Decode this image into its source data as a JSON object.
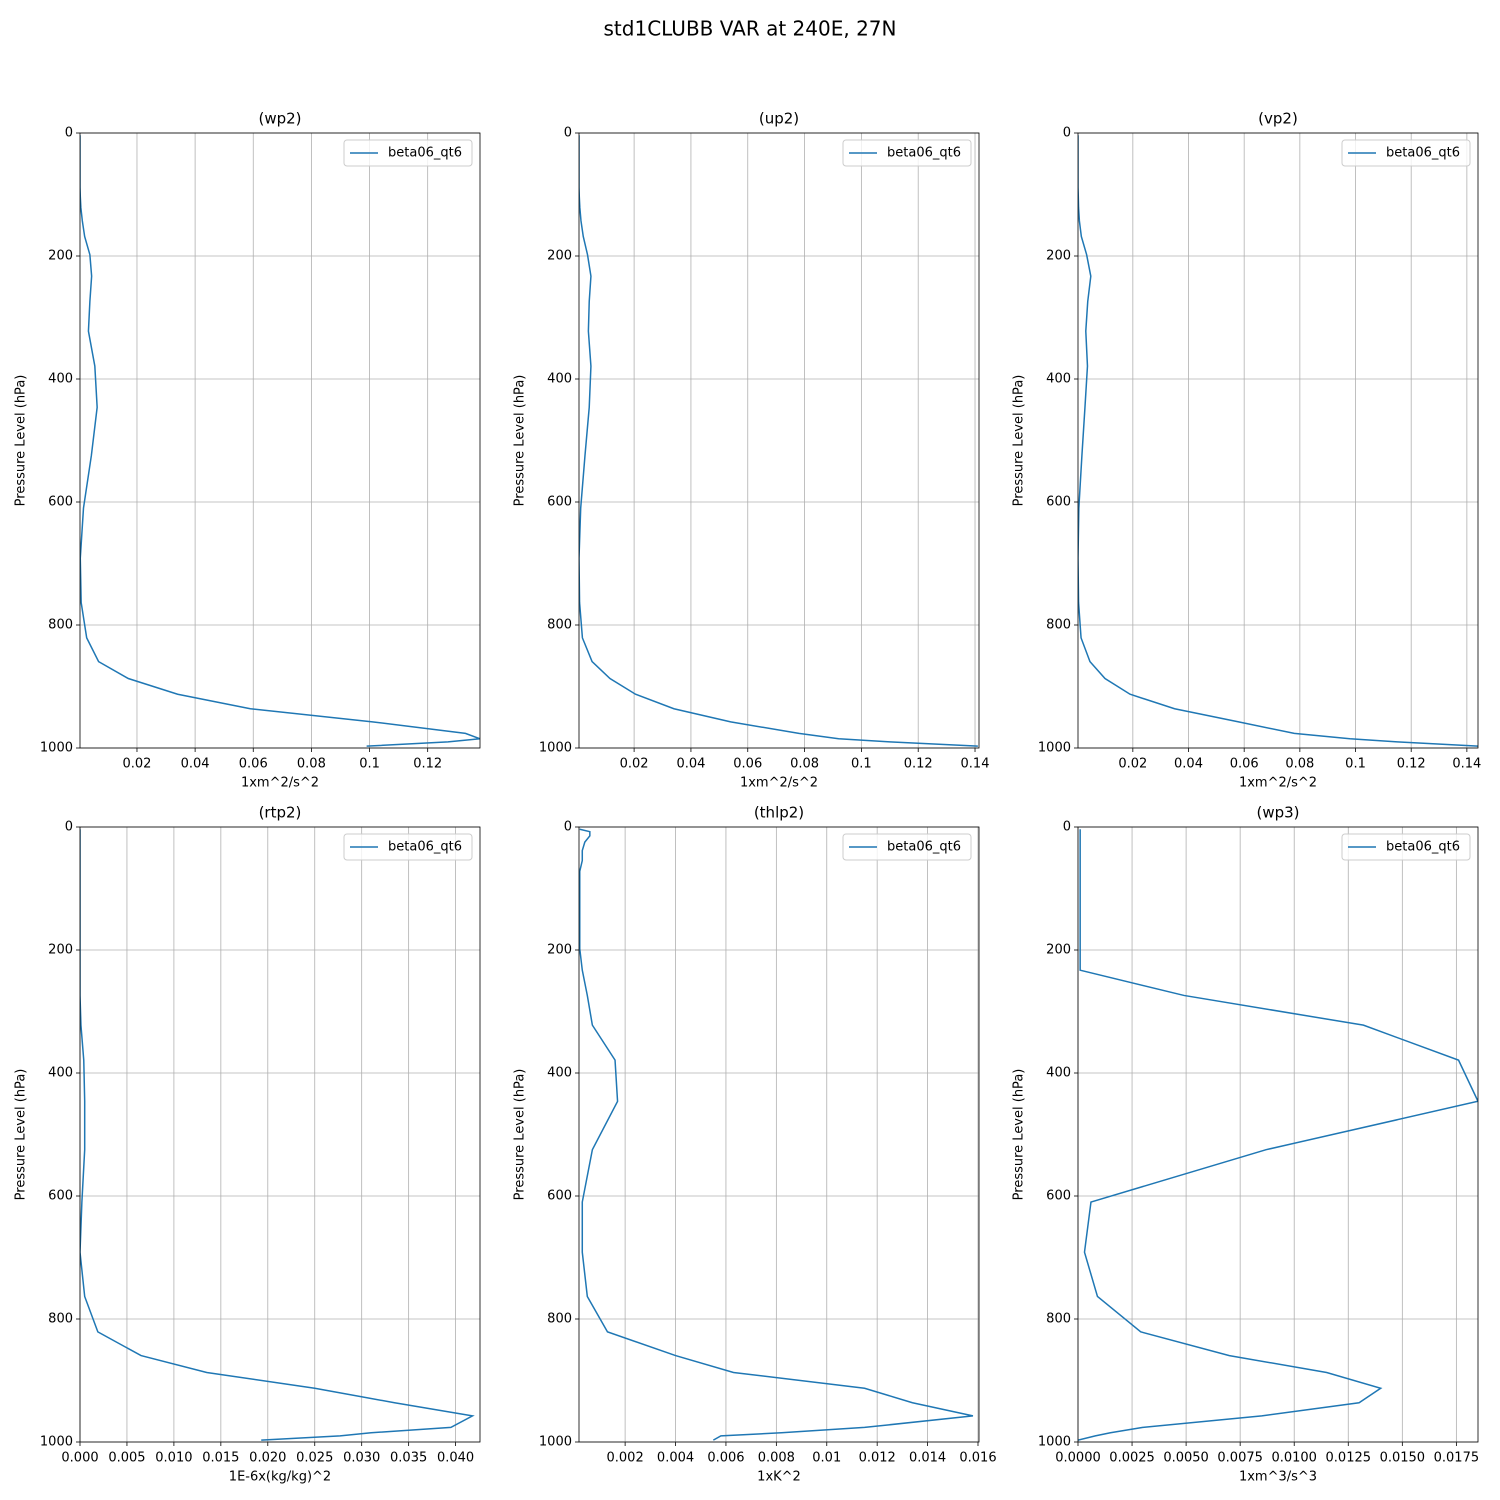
{
  "title": "std1CLUBB VAR at 240E, 27N",
  "chart_data": [
    {
      "type": "line",
      "title": "(wp2)",
      "xlabel": "1xm^2/s^2",
      "ylabel": "Pressure Level (hPa)",
      "y": [
        3.6,
        7.6,
        14.4,
        24.6,
        38.3,
        54.6,
        72,
        87.8,
        103.3,
        121.5,
        143,
        168.2,
        197.9,
        232.8,
        273.9,
        322.2,
        379.1,
        446,
        524.7,
        609.8,
        691.4,
        763.4,
        820.9,
        859.5,
        887,
        912.6,
        936.2,
        957.5,
        976.3,
        985,
        990,
        997
      ],
      "series": [
        {
          "name": "beta06_qt6",
          "color": "#1f77b4",
          "values": [
            0.0004,
            0.0004,
            0.0004,
            0.0004,
            0.0004,
            0.0004,
            0.0004,
            0.0004,
            0.0005,
            0.0007,
            0.0012,
            0.002,
            0.0038,
            0.0044,
            0.0038,
            0.0033,
            0.0055,
            0.0063,
            0.0043,
            0.0016,
            0.0005,
            0.0008,
            0.0027,
            0.0068,
            0.017,
            0.034,
            0.059,
            0.101,
            0.133,
            0.138,
            0.127,
            0.099
          ]
        }
      ],
      "xlim": [
        0.0004,
        0.138
      ],
      "xticks": [
        0.02,
        0.04,
        0.06,
        0.08,
        0.1,
        0.12
      ],
      "ylim": [
        1000,
        0
      ],
      "yticks": [
        0,
        200,
        400,
        600,
        800,
        1000
      ],
      "grid": true,
      "legend": "upper right"
    },
    {
      "type": "line",
      "title": "(up2)",
      "xlabel": "1xm^2/s^2",
      "ylabel": "Pressure Level (hPa)",
      "y": [
        3.6,
        7.6,
        14.4,
        24.6,
        38.3,
        54.6,
        72,
        87.8,
        103.3,
        121.5,
        143,
        168.2,
        197.9,
        232.8,
        273.9,
        322.2,
        379.1,
        446,
        524.7,
        609.8,
        691.4,
        763.4,
        820.9,
        859.5,
        887,
        912.6,
        936.2,
        957.5,
        976.3,
        985,
        990,
        997
      ],
      "series": [
        {
          "name": "beta06_qt6",
          "color": "#1f77b4",
          "values": [
            0.0006,
            0.0006,
            0.0006,
            0.0006,
            0.0006,
            0.0006,
            0.0006,
            0.0006,
            0.0007,
            0.0009,
            0.0013,
            0.0021,
            0.0036,
            0.0048,
            0.0042,
            0.0039,
            0.0048,
            0.0042,
            0.0027,
            0.0012,
            0.0006,
            0.0008,
            0.0018,
            0.0052,
            0.0115,
            0.0205,
            0.034,
            0.054,
            0.078,
            0.092,
            0.11,
            0.141
          ]
        }
      ],
      "xlim": [
        0.0006,
        0.1414
      ],
      "xticks": [
        0.02,
        0.04,
        0.06,
        0.08,
        0.1,
        0.12,
        0.14
      ],
      "ylim": [
        1000,
        0
      ],
      "yticks": [
        0,
        200,
        400,
        600,
        800,
        1000
      ],
      "grid": true,
      "legend": "upper right"
    },
    {
      "type": "line",
      "title": "(vp2)",
      "xlabel": "1xm^2/s^2",
      "ylabel": "Pressure Level (hPa)",
      "y": [
        3.6,
        7.6,
        14.4,
        24.6,
        38.3,
        54.6,
        72,
        87.8,
        103.3,
        121.5,
        143,
        168.2,
        197.9,
        232.8,
        273.9,
        322.2,
        379.1,
        446,
        524.7,
        609.8,
        691.4,
        763.4,
        820.9,
        859.5,
        887,
        912.6,
        936.2,
        957.5,
        976.3,
        985,
        990,
        997
      ],
      "series": [
        {
          "name": "beta06_qt6",
          "color": "#1f77b4",
          "values": [
            0.0003,
            0.0003,
            0.0003,
            0.0003,
            0.0003,
            0.0003,
            0.0003,
            0.0003,
            0.0004,
            0.0005,
            0.0008,
            0.0015,
            0.0034,
            0.0049,
            0.0038,
            0.0031,
            0.0037,
            0.0028,
            0.0017,
            0.0006,
            0.0003,
            0.0005,
            0.0014,
            0.0046,
            0.01,
            0.019,
            0.035,
            0.058,
            0.078,
            0.098,
            0.115,
            0.144
          ]
        }
      ],
      "xlim": [
        0.0003,
        0.144
      ],
      "xticks": [
        0.02,
        0.04,
        0.06,
        0.08,
        0.1,
        0.12,
        0.14
      ],
      "ylim": [
        1000,
        0
      ],
      "yticks": [
        0,
        200,
        400,
        600,
        800,
        1000
      ],
      "grid": true,
      "legend": "upper right"
    },
    {
      "type": "line",
      "title": "(rtp2)",
      "xlabel": "1E-6x(kg/kg)^2",
      "ylabel": "Pressure Level (hPa)",
      "y": [
        3.6,
        7.6,
        14.4,
        24.6,
        38.3,
        54.6,
        72,
        87.8,
        103.3,
        121.5,
        143,
        168.2,
        197.9,
        232.8,
        273.9,
        322.2,
        379.1,
        446,
        524.7,
        609.8,
        691.4,
        763.4,
        820.9,
        859.5,
        887,
        912.6,
        936.2,
        957.5,
        976.3,
        985,
        990,
        997
      ],
      "series": [
        {
          "name": "beta06_qt6",
          "color": "#1f77b4",
          "values": [
            0,
            0,
            0,
            0,
            0,
            0,
            0,
            0,
            0,
            0,
            0,
            0,
            0,
            0,
            0,
            0.0001,
            0.0004,
            0.0005,
            0.0005,
            0.0002,
            0,
            0.0005,
            0.0019,
            0.0065,
            0.0135,
            0.025,
            0.0335,
            0.0418,
            0.0395,
            0.031,
            0.0277,
            0.0193
          ]
        }
      ],
      "xlim": [
        0,
        0.0426
      ],
      "xticks": [
        {
          "value": 0,
          "label": "0.000"
        },
        {
          "value": 0.005,
          "label": "0.005"
        },
        {
          "value": 0.01,
          "label": "0.010"
        },
        {
          "value": 0.015,
          "label": "0.015"
        },
        {
          "value": 0.02,
          "label": "0.020"
        },
        {
          "value": 0.025,
          "label": "0.025"
        },
        {
          "value": 0.03,
          "label": "0.030"
        },
        {
          "value": 0.035,
          "label": "0.035"
        },
        {
          "value": 0.04,
          "label": "0.040"
        }
      ],
      "ylim": [
        1000,
        0
      ],
      "yticks": [
        0,
        200,
        400,
        600,
        800,
        1000
      ],
      "grid": true,
      "legend": "upper right"
    },
    {
      "type": "line",
      "title": "(thlp2)",
      "xlabel": "1xK^2",
      "ylabel": "Pressure Level (hPa)",
      "y": [
        3.6,
        7.6,
        14.4,
        24.6,
        38.3,
        54.6,
        72,
        87.8,
        103.3,
        121.5,
        143,
        168.2,
        197.9,
        232.8,
        273.9,
        322.2,
        379.1,
        446,
        524.7,
        609.8,
        691.4,
        763.4,
        820.9,
        859.5,
        887,
        912.6,
        936.2,
        957.5,
        976.3,
        985,
        990,
        997
      ],
      "series": [
        {
          "name": "beta06_qt6",
          "color": "#1f77b4",
          "values": [
            0.0002,
            0.0006,
            0.0006,
            0.0004,
            0.0003,
            0.0003,
            0.0002,
            0.0002,
            0.0002,
            0.0002,
            0.0002,
            0.0002,
            0.0002,
            0.0003,
            0.0005,
            0.0007,
            0.0016,
            0.0017,
            0.0007,
            0.0003,
            0.0003,
            0.0005,
            0.0013,
            0.004,
            0.0063,
            0.0115,
            0.0134,
            0.0158,
            0.0115,
            0.0082,
            0.0058,
            0.0055
          ]
        }
      ],
      "xlim": [
        0.00017,
        0.01604
      ],
      "xticks": [
        0.002,
        0.004,
        0.006,
        0.008,
        0.01,
        0.012,
        0.014,
        0.016
      ],
      "ylim": [
        1000,
        0
      ],
      "yticks": [
        0,
        200,
        400,
        600,
        800,
        1000
      ],
      "grid": true,
      "legend": "upper right"
    },
    {
      "type": "line",
      "title": "(wp3)",
      "xlabel": "1xm^3/s^3",
      "ylabel": "Pressure Level (hPa)",
      "y": [
        3.6,
        7.6,
        14.4,
        24.6,
        38.3,
        54.6,
        72,
        87.8,
        103.3,
        121.5,
        143,
        168.2,
        197.9,
        232.8,
        273.9,
        322.2,
        379.1,
        446,
        524.7,
        609.8,
        691.4,
        763.4,
        820.9,
        859.5,
        887,
        912.6,
        936.2,
        957.5,
        976.3,
        985,
        990,
        997
      ],
      "series": [
        {
          "name": "beta06_qt6",
          "color": "#1f77b4",
          "values": [
            0.0001,
            0.0001,
            0.0001,
            0.0001,
            0.0001,
            0.0001,
            0.0001,
            0.0001,
            0.0001,
            0.0001,
            0.0001,
            0.0001,
            0.0001,
            0.0001,
            0.0049,
            0.0132,
            0.0176,
            0.0185,
            0.0087,
            0.0006,
            0.0003,
            0.0009,
            0.0029,
            0.007,
            0.0115,
            0.014,
            0.013,
            0.0085,
            0.003,
            0.0015,
            0.0008,
            0
          ]
        }
      ],
      "xlim": [
        0,
        0.0185
      ],
      "xticks": [
        {
          "value": 0,
          "label": "0.0000"
        },
        {
          "value": 0.0025,
          "label": "0.0025"
        },
        {
          "value": 0.005,
          "label": "0.0050"
        },
        {
          "value": 0.0075,
          "label": "0.0075"
        },
        {
          "value": 0.01,
          "label": "0.0100"
        },
        {
          "value": 0.0125,
          "label": "0.0125"
        },
        {
          "value": 0.015,
          "label": "0.0150"
        },
        {
          "value": 0.0175,
          "label": "0.0175"
        }
      ],
      "ylim": [
        1000,
        0
      ],
      "yticks": [
        0,
        200,
        400,
        600,
        800,
        1000
      ],
      "grid": true,
      "legend": "upper right"
    }
  ]
}
